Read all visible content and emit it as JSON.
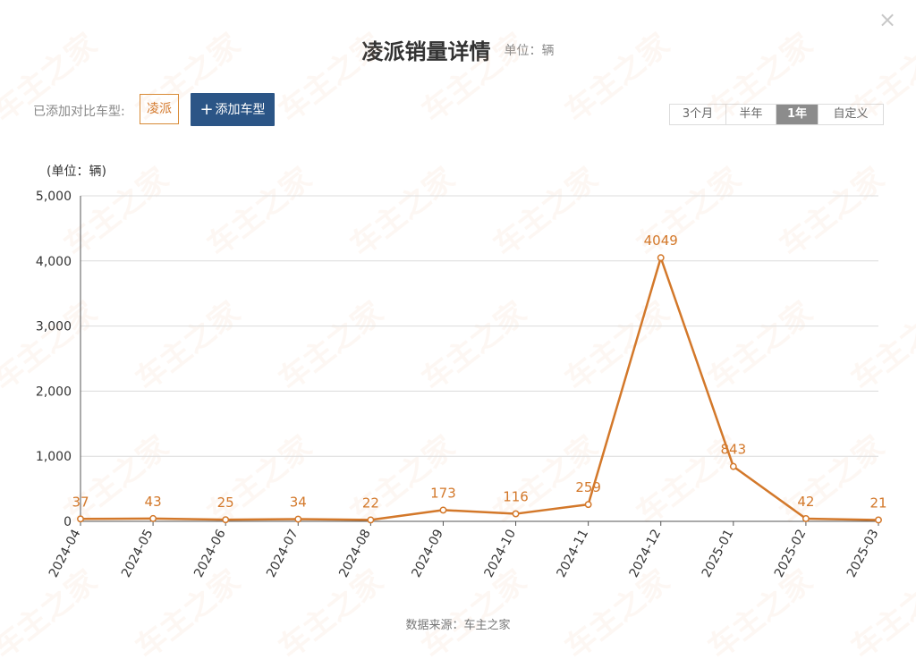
{
  "header": {
    "title": "凌派销量详情",
    "unit": "单位：辆",
    "close_glyph": "×"
  },
  "compare": {
    "label": "已添加对比车型:",
    "tags": [
      "凌派"
    ],
    "add_button": "添加车型"
  },
  "range_tabs": [
    {
      "label": "3个月",
      "active": false
    },
    {
      "label": "半年",
      "active": false
    },
    {
      "label": "1年",
      "active": true
    },
    {
      "label": "自定义",
      "active": false
    }
  ],
  "footer": {
    "source": "数据来源：车主之家"
  },
  "watermark": "车主之家",
  "colors": {
    "line": "#d3782a",
    "label": "#d3782a",
    "button": "#2b5586",
    "active_tab": "#8c8c8c"
  },
  "chart_data": {
    "type": "line",
    "ylabel": "(单位：辆)",
    "ylim": [
      0,
      5000
    ],
    "yticks": [
      0,
      1000,
      2000,
      3000,
      4000,
      5000
    ],
    "ytick_labels": [
      "0",
      "1,000",
      "2,000",
      "3,000",
      "4,000",
      "5,000"
    ],
    "grid": true,
    "categories": [
      "2024-04",
      "2024-05",
      "2024-06",
      "2024-07",
      "2024-08",
      "2024-09",
      "2024-10",
      "2024-11",
      "2024-12",
      "2025-01",
      "2025-02",
      "2025-03"
    ],
    "series": [
      {
        "values": [
          37,
          43,
          25,
          34,
          22,
          173,
          116,
          259,
          4049,
          843,
          42,
          21
        ]
      }
    ]
  }
}
